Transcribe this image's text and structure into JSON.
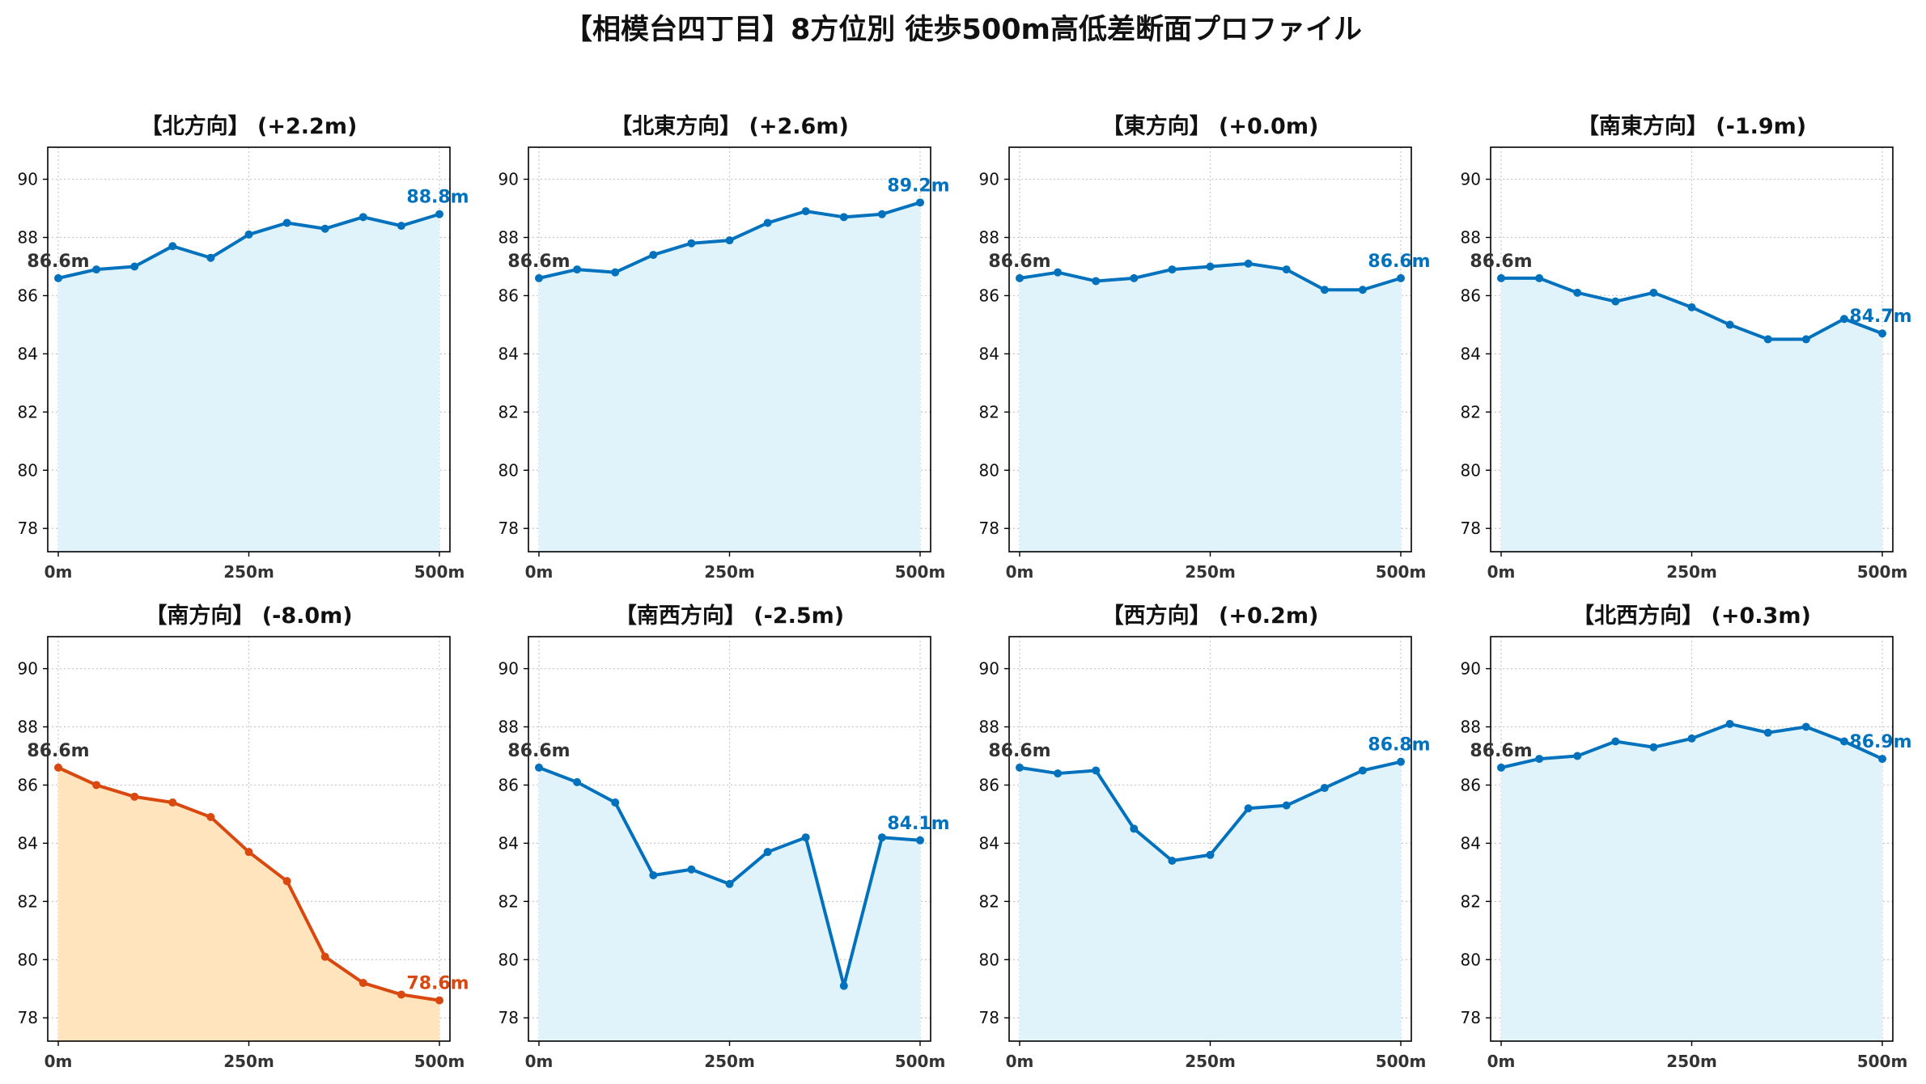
{
  "figure": {
    "title": "【相模台四丁目】8方位別 徒歩500m高低差断面プロファイル"
  },
  "colors": {
    "up": "#0072bd",
    "up_fill": "#e0f3fb",
    "down": "#d9480f",
    "down_fill": "#ffe4bd",
    "start_label": "#333333",
    "grid": "#c8c8c8"
  },
  "chart_data": [
    {
      "type": "line",
      "title": "【北方向】 (+2.2m)",
      "x": [
        0,
        50,
        100,
        150,
        200,
        250,
        300,
        350,
        400,
        450,
        500
      ],
      "xticks": [
        0,
        250,
        500
      ],
      "xtick_labels": [
        "0m",
        "250m",
        "500m"
      ],
      "ylim": [
        77.2,
        91.1
      ],
      "yticks": [
        78,
        80,
        82,
        84,
        86,
        88,
        90
      ],
      "values": [
        86.6,
        86.9,
        87.0,
        87.7,
        87.3,
        88.1,
        88.5,
        88.3,
        88.7,
        88.4,
        88.8
      ],
      "start_label": "86.6m",
      "end_label": "88.8m",
      "style": "up",
      "grid": true
    },
    {
      "type": "line",
      "title": "【北東方向】 (+2.6m)",
      "x": [
        0,
        50,
        100,
        150,
        200,
        250,
        300,
        350,
        400,
        450,
        500
      ],
      "xticks": [
        0,
        250,
        500
      ],
      "xtick_labels": [
        "0m",
        "250m",
        "500m"
      ],
      "ylim": [
        77.2,
        91.1
      ],
      "yticks": [
        78,
        80,
        82,
        84,
        86,
        88,
        90
      ],
      "values": [
        86.6,
        86.9,
        86.8,
        87.4,
        87.8,
        87.9,
        88.5,
        88.9,
        88.7,
        88.8,
        89.2
      ],
      "start_label": "86.6m",
      "end_label": "89.2m",
      "style": "up",
      "grid": true
    },
    {
      "type": "line",
      "title": "【東方向】 (+0.0m)",
      "x": [
        0,
        50,
        100,
        150,
        200,
        250,
        300,
        350,
        400,
        450,
        500
      ],
      "xticks": [
        0,
        250,
        500
      ],
      "xtick_labels": [
        "0m",
        "250m",
        "500m"
      ],
      "ylim": [
        77.2,
        91.1
      ],
      "yticks": [
        78,
        80,
        82,
        84,
        86,
        88,
        90
      ],
      "values": [
        86.6,
        86.8,
        86.5,
        86.6,
        86.9,
        87.0,
        87.1,
        86.9,
        86.2,
        86.2,
        86.6
      ],
      "start_label": "86.6m",
      "end_label": "86.6m",
      "style": "up",
      "grid": true
    },
    {
      "type": "line",
      "title": "【南東方向】 (-1.9m)",
      "x": [
        0,
        50,
        100,
        150,
        200,
        250,
        300,
        350,
        400,
        450,
        500
      ],
      "xticks": [
        0,
        250,
        500
      ],
      "xtick_labels": [
        "0m",
        "250m",
        "500m"
      ],
      "ylim": [
        77.2,
        91.1
      ],
      "yticks": [
        78,
        80,
        82,
        84,
        86,
        88,
        90
      ],
      "values": [
        86.6,
        86.6,
        86.1,
        85.8,
        86.1,
        85.6,
        85.0,
        84.5,
        84.5,
        85.2,
        84.7
      ],
      "start_label": "86.6m",
      "end_label": "84.7m",
      "style": "up",
      "grid": true
    },
    {
      "type": "line",
      "title": "【南方向】 (-8.0m)",
      "x": [
        0,
        50,
        100,
        150,
        200,
        250,
        300,
        350,
        400,
        450,
        500
      ],
      "xticks": [
        0,
        250,
        500
      ],
      "xtick_labels": [
        "0m",
        "250m",
        "500m"
      ],
      "ylim": [
        77.2,
        91.1
      ],
      "yticks": [
        78,
        80,
        82,
        84,
        86,
        88,
        90
      ],
      "values": [
        86.6,
        86.0,
        85.6,
        85.4,
        84.9,
        83.7,
        82.7,
        80.1,
        79.2,
        78.8,
        78.6
      ],
      "start_label": "86.6m",
      "end_label": "78.6m",
      "style": "down",
      "grid": true
    },
    {
      "type": "line",
      "title": "【南西方向】 (-2.5m)",
      "x": [
        0,
        50,
        100,
        150,
        200,
        250,
        300,
        350,
        400,
        450,
        500
      ],
      "xticks": [
        0,
        250,
        500
      ],
      "xtick_labels": [
        "0m",
        "250m",
        "500m"
      ],
      "ylim": [
        77.2,
        91.1
      ],
      "yticks": [
        78,
        80,
        82,
        84,
        86,
        88,
        90
      ],
      "values": [
        86.6,
        86.1,
        85.4,
        82.9,
        83.1,
        82.6,
        83.7,
        84.2,
        79.1,
        84.2,
        84.1
      ],
      "start_label": "86.6m",
      "end_label": "84.1m",
      "style": "up",
      "grid": true
    },
    {
      "type": "line",
      "title": "【西方向】 (+0.2m)",
      "x": [
        0,
        50,
        100,
        150,
        200,
        250,
        300,
        350,
        400,
        450,
        500
      ],
      "xticks": [
        0,
        250,
        500
      ],
      "xtick_labels": [
        "0m",
        "250m",
        "500m"
      ],
      "ylim": [
        77.2,
        91.1
      ],
      "yticks": [
        78,
        80,
        82,
        84,
        86,
        88,
        90
      ],
      "values": [
        86.6,
        86.4,
        86.5,
        84.5,
        83.4,
        83.6,
        85.2,
        85.3,
        85.9,
        86.5,
        86.8
      ],
      "start_label": "86.6m",
      "end_label": "86.8m",
      "style": "up",
      "grid": true
    },
    {
      "type": "line",
      "title": "【北西方向】 (+0.3m)",
      "x": [
        0,
        50,
        100,
        150,
        200,
        250,
        300,
        350,
        400,
        450,
        500
      ],
      "xticks": [
        0,
        250,
        500
      ],
      "xtick_labels": [
        "0m",
        "250m",
        "500m"
      ],
      "ylim": [
        77.2,
        91.1
      ],
      "yticks": [
        78,
        80,
        82,
        84,
        86,
        88,
        90
      ],
      "values": [
        86.6,
        86.9,
        87.0,
        87.5,
        87.3,
        87.6,
        88.1,
        87.8,
        88.0,
        87.5,
        86.9
      ],
      "start_label": "86.6m",
      "end_label": "86.9m",
      "style": "up",
      "grid": true
    }
  ]
}
